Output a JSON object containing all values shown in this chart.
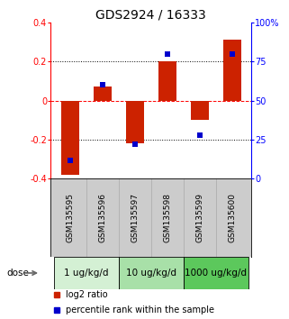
{
  "title": "GDS2924 / 16333",
  "samples": [
    "GSM135595",
    "GSM135596",
    "GSM135597",
    "GSM135598",
    "GSM135599",
    "GSM135600"
  ],
  "log2_ratios": [
    -0.38,
    0.07,
    -0.22,
    0.2,
    -0.1,
    0.31
  ],
  "percentile_ranks": [
    12,
    60,
    22,
    80,
    28,
    80
  ],
  "ylim_left": [
    -0.4,
    0.4
  ],
  "ylim_right": [
    0,
    100
  ],
  "yticks_left": [
    -0.4,
    -0.2,
    0.0,
    0.2,
    0.4
  ],
  "yticks_right": [
    0,
    25,
    50,
    75,
    100
  ],
  "ytick_labels_left": [
    "-0.4",
    "-0.2",
    "0",
    "0.2",
    "0.4"
  ],
  "ytick_labels_right": [
    "0",
    "25",
    "50",
    "75",
    "100%"
  ],
  "hlines": [
    -0.2,
    0.0,
    0.2
  ],
  "hline_styles": [
    "dotted",
    "dashed",
    "dotted"
  ],
  "hline_colors": [
    "black",
    "red",
    "black"
  ],
  "dose_groups": [
    {
      "label": "1 ug/kg/d",
      "cols": [
        0,
        1
      ],
      "color": "#d4f0d4"
    },
    {
      "label": "10 ug/kg/d",
      "cols": [
        2,
        3
      ],
      "color": "#a8e0a8"
    },
    {
      "label": "1000 ug/kg/d",
      "cols": [
        4,
        5
      ],
      "color": "#5cc85c"
    }
  ],
  "bar_color": "#cc2200",
  "dot_color": "#0000cc",
  "bar_width": 0.55,
  "dot_size": 22,
  "legend_bar_label": "log2 ratio",
  "legend_dot_label": "percentile rank within the sample",
  "dose_label": "dose",
  "bg_color_plot": "#ffffff",
  "bg_color_sample_row": "#cccccc",
  "title_fontsize": 10,
  "tick_fontsize": 7,
  "sample_fontsize": 6.5,
  "dose_fontsize": 7.5,
  "legend_fontsize": 7
}
